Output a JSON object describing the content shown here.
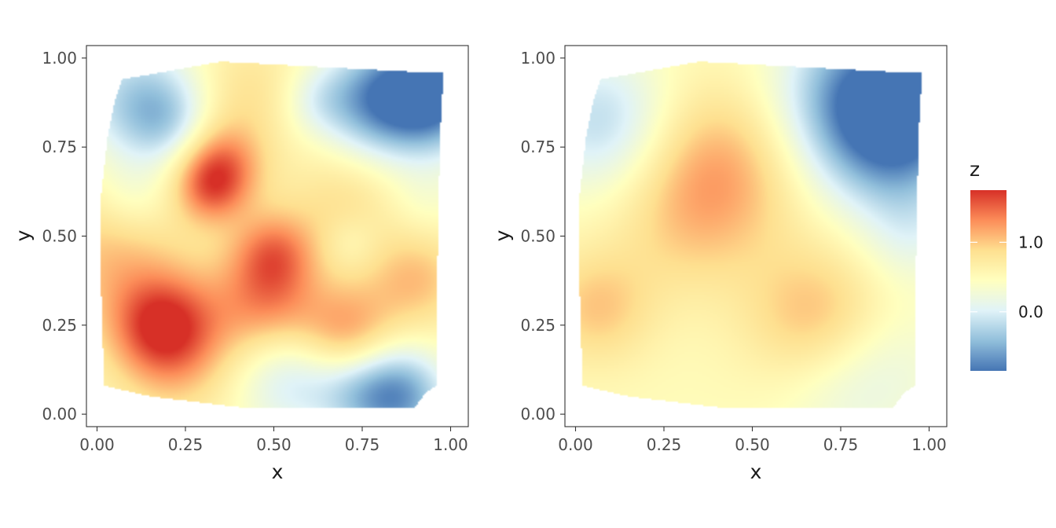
{
  "chart_data": [
    {
      "type": "heatmap",
      "xlabel": "x",
      "ylabel": "y",
      "xlim": [
        -0.03,
        1.05
      ],
      "ylim": [
        -0.035,
        1.035
      ],
      "x_ticks": [
        0.0,
        0.25,
        0.5,
        0.75,
        1.0
      ],
      "y_ticks": [
        0.0,
        0.25,
        0.5,
        0.75,
        1.0
      ],
      "x_tick_labels": [
        "0.00",
        "0.25",
        "0.50",
        "0.75",
        "1.00"
      ],
      "y_tick_labels": [
        "0.00",
        "0.25",
        "0.50",
        "0.75",
        "1.00"
      ],
      "grid": false,
      "hull": [
        [
          0.07,
          0.94
        ],
        [
          0.35,
          0.99
        ],
        [
          0.92,
          0.96
        ],
        [
          0.98,
          0.96
        ],
        [
          0.97,
          0.78
        ],
        [
          0.96,
          0.28
        ],
        [
          0.96,
          0.08
        ],
        [
          0.93,
          0.06
        ],
        [
          0.9,
          0.02
        ],
        [
          0.8,
          0.02
        ],
        [
          0.4,
          0.02
        ],
        [
          0.15,
          0.05
        ],
        [
          0.02,
          0.08
        ],
        [
          0.01,
          0.4
        ],
        [
          0.01,
          0.6
        ],
        [
          0.03,
          0.78
        ],
        [
          0.05,
          0.88
        ]
      ],
      "field": {
        "base": 0.55,
        "smoothness": 1.4,
        "features": [
          {
            "x": 0.35,
            "y": 0.7,
            "z": 0.8,
            "r": 0.06
          },
          {
            "x": 0.32,
            "y": 0.63,
            "z": 0.6,
            "r": 0.05
          },
          {
            "x": 0.5,
            "y": 0.45,
            "z": 0.8,
            "r": 0.06
          },
          {
            "x": 0.18,
            "y": 0.25,
            "z": 1.0,
            "r": 0.07
          },
          {
            "x": 0.23,
            "y": 0.15,
            "z": 0.4,
            "r": 0.08
          },
          {
            "x": 0.05,
            "y": 0.45,
            "z": 0.5,
            "r": 0.1
          },
          {
            "x": 0.7,
            "y": 0.23,
            "z": 0.7,
            "r": 0.07
          },
          {
            "x": 0.9,
            "y": 0.38,
            "z": 0.5,
            "r": 0.07
          },
          {
            "x": 0.5,
            "y": 0.3,
            "z": 0.5,
            "r": 0.07
          },
          {
            "x": 0.38,
            "y": 0.3,
            "z": 0.3,
            "r": 0.08
          },
          {
            "x": 0.95,
            "y": 0.9,
            "z": -1.5,
            "r": 0.08
          },
          {
            "x": 0.78,
            "y": 0.88,
            "z": -1.0,
            "r": 0.08
          },
          {
            "x": 0.62,
            "y": 0.88,
            "z": -0.3,
            "r": 0.05
          },
          {
            "x": 0.12,
            "y": 0.88,
            "z": -0.8,
            "r": 0.09
          },
          {
            "x": 0.2,
            "y": 0.82,
            "z": -0.4,
            "r": 0.06
          },
          {
            "x": 0.1,
            "y": 0.6,
            "z": -0.3,
            "r": 0.06
          },
          {
            "x": 0.55,
            "y": 0.1,
            "z": -0.6,
            "r": 0.08
          },
          {
            "x": 0.85,
            "y": 0.05,
            "z": -1.2,
            "r": 0.07
          },
          {
            "x": 0.72,
            "y": 0.06,
            "z": -0.4,
            "r": 0.06
          },
          {
            "x": 0.93,
            "y": 0.6,
            "z": -0.2,
            "r": 0.06
          },
          {
            "x": 0.7,
            "y": 0.6,
            "z": 0.3,
            "r": 0.08
          },
          {
            "x": 0.42,
            "y": 0.9,
            "z": 0.3,
            "r": 0.08
          },
          {
            "x": 0.72,
            "y": 0.48,
            "z": -0.2,
            "r": 0.04
          }
        ]
      }
    },
    {
      "type": "heatmap",
      "xlabel": "x",
      "ylabel": "y",
      "xlim": [
        -0.03,
        1.05
      ],
      "ylim": [
        -0.035,
        1.035
      ],
      "x_ticks": [
        0.0,
        0.25,
        0.5,
        0.75,
        1.0
      ],
      "y_ticks": [
        0.0,
        0.25,
        0.5,
        0.75,
        1.0
      ],
      "x_tick_labels": [
        "0.00",
        "0.25",
        "0.50",
        "0.75",
        "1.00"
      ],
      "y_tick_labels": [
        "0.00",
        "0.25",
        "0.50",
        "0.75",
        "1.00"
      ],
      "grid": false,
      "hull": [
        [
          0.07,
          0.94
        ],
        [
          0.35,
          0.99
        ],
        [
          0.92,
          0.96
        ],
        [
          0.98,
          0.96
        ],
        [
          0.97,
          0.78
        ],
        [
          0.96,
          0.28
        ],
        [
          0.96,
          0.08
        ],
        [
          0.93,
          0.06
        ],
        [
          0.9,
          0.02
        ],
        [
          0.8,
          0.02
        ],
        [
          0.4,
          0.02
        ],
        [
          0.15,
          0.05
        ],
        [
          0.02,
          0.08
        ],
        [
          0.01,
          0.4
        ],
        [
          0.01,
          0.6
        ],
        [
          0.03,
          0.78
        ],
        [
          0.05,
          0.88
        ]
      ],
      "field": {
        "base": 0.5,
        "smoothness": 1.4,
        "features": [
          {
            "x": 0.4,
            "y": 0.68,
            "z": 0.7,
            "r": 0.12
          },
          {
            "x": 0.3,
            "y": 0.5,
            "z": 0.2,
            "r": 0.1
          },
          {
            "x": 0.68,
            "y": 0.27,
            "z": 0.6,
            "r": 0.1
          },
          {
            "x": 0.06,
            "y": 0.3,
            "z": 0.5,
            "r": 0.08
          },
          {
            "x": 0.82,
            "y": 0.88,
            "z": -1.2,
            "r": 0.12
          },
          {
            "x": 0.95,
            "y": 0.85,
            "z": -0.8,
            "r": 0.1
          },
          {
            "x": 0.08,
            "y": 0.82,
            "z": -0.7,
            "r": 0.1
          },
          {
            "x": 0.75,
            "y": 0.08,
            "z": -0.3,
            "r": 0.1
          },
          {
            "x": 0.9,
            "y": 0.15,
            "z": -0.2,
            "r": 0.1
          },
          {
            "x": 0.95,
            "y": 0.5,
            "z": -0.3,
            "r": 0.07
          },
          {
            "x": 0.9,
            "y": 0.7,
            "z": -0.3,
            "r": 0.1
          }
        ]
      }
    }
  ],
  "legend": {
    "title": "z",
    "labels": [
      "1.0",
      "0.0"
    ],
    "label_values": [
      1.0,
      0.0
    ],
    "range": [
      -0.85,
      1.75
    ],
    "colors": [
      "#4575b4",
      "#91bfdb",
      "#e0f3f8",
      "#ffffbf",
      "#fee090",
      "#fc8d59",
      "#d73027"
    ]
  },
  "colors": {
    "panel_border": "#333333",
    "tick_mark": "#333333"
  }
}
